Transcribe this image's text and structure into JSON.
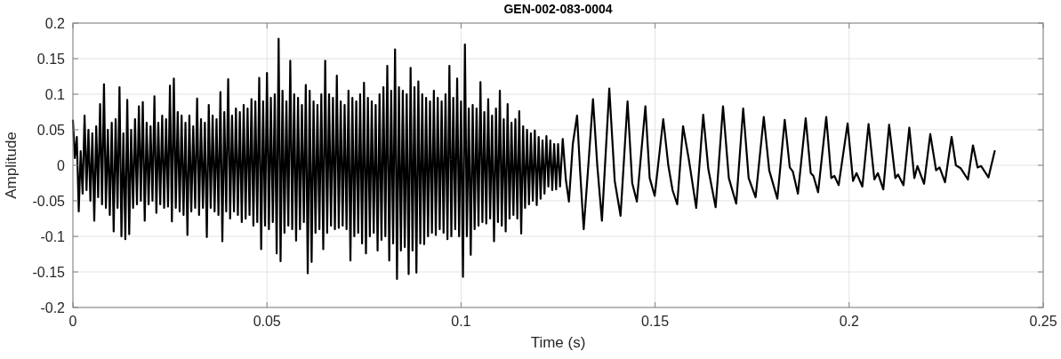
{
  "chart_data": {
    "type": "line",
    "title": "GEN-002-083-0004",
    "xlabel": "Time (s)",
    "ylabel": "Amplitude",
    "xlim": [
      0,
      0.25
    ],
    "xticks": [
      0,
      0.05,
      0.1,
      0.15,
      0.2,
      0.25
    ],
    "ylim": [
      -0.2,
      0.2
    ],
    "yticks": [
      -0.2,
      -0.15,
      -0.1,
      -0.05,
      0,
      0.05,
      0.1,
      0.15,
      0.2
    ],
    "grid": true,
    "line_style": "solid",
    "series": [
      {
        "color": "#000000",
        "x": [
          0,
          0.0005,
          0.001,
          0.0015,
          0.002,
          0.0025,
          0.003,
          0.0035,
          0.004,
          0.0045,
          0.005,
          0.0055,
          0.006,
          0.0065,
          0.007,
          0.0075,
          0.008,
          0.0085,
          0.009,
          0.0095,
          0.01,
          0.0105,
          0.011,
          0.0115,
          0.012,
          0.0125,
          0.013,
          0.0135,
          0.014,
          0.0145,
          0.015,
          0.0155,
          0.016,
          0.0165,
          0.017,
          0.0175,
          0.018,
          0.0185,
          0.019,
          0.0195,
          0.02,
          0.0205,
          0.021,
          0.0215,
          0.022,
          0.0225,
          0.023,
          0.0235,
          0.024,
          0.0245,
          0.025,
          0.0255,
          0.026,
          0.0265,
          0.027,
          0.0275,
          0.028,
          0.0285,
          0.029,
          0.0295,
          0.03,
          0.0305,
          0.031,
          0.0315,
          0.032,
          0.0325,
          0.033,
          0.0335,
          0.034,
          0.0345,
          0.035,
          0.0355,
          0.036,
          0.0365,
          0.037,
          0.0375,
          0.038,
          0.0385,
          0.039,
          0.0395,
          0.04,
          0.0405,
          0.041,
          0.0415,
          0.042,
          0.0425,
          0.043,
          0.0435,
          0.044,
          0.0445,
          0.045,
          0.0455,
          0.046,
          0.0465,
          0.047,
          0.0475,
          0.048,
          0.0485,
          0.049,
          0.0495,
          0.05,
          0.0505,
          0.051,
          0.0515,
          0.052,
          0.0525,
          0.053,
          0.0535,
          0.054,
          0.0545,
          0.055,
          0.0555,
          0.056,
          0.0565,
          0.057,
          0.0575,
          0.058,
          0.0585,
          0.059,
          0.0595,
          0.06,
          0.0605,
          0.061,
          0.0615,
          0.062,
          0.0625,
          0.063,
          0.0635,
          0.064,
          0.0645,
          0.065,
          0.0655,
          0.066,
          0.0665,
          0.067,
          0.0675,
          0.068,
          0.0685,
          0.069,
          0.0695,
          0.07,
          0.0705,
          0.071,
          0.0715,
          0.072,
          0.0725,
          0.073,
          0.0735,
          0.074,
          0.0745,
          0.075,
          0.0755,
          0.076,
          0.0765,
          0.077,
          0.0775,
          0.078,
          0.0785,
          0.079,
          0.0795,
          0.08,
          0.0805,
          0.081,
          0.0815,
          0.082,
          0.0825,
          0.083,
          0.0835,
          0.084,
          0.0845,
          0.085,
          0.0855,
          0.086,
          0.0865,
          0.087,
          0.0875,
          0.088,
          0.0885,
          0.089,
          0.0895,
          0.09,
          0.0905,
          0.091,
          0.0915,
          0.092,
          0.0925,
          0.093,
          0.0935,
          0.094,
          0.0945,
          0.095,
          0.0955,
          0.096,
          0.0965,
          0.097,
          0.0975,
          0.098,
          0.0985,
          0.099,
          0.0995,
          0.1,
          0.1005,
          0.101,
          0.1015,
          0.102,
          0.1025,
          0.103,
          0.1035,
          0.104,
          0.1045,
          0.105,
          0.1055,
          0.106,
          0.1065,
          0.107,
          0.1075,
          0.108,
          0.1085,
          0.109,
          0.1095,
          0.11,
          0.1105,
          0.111,
          0.1115,
          0.112,
          0.1125,
          0.113,
          0.1135,
          0.114,
          0.1145,
          0.115,
          0.1155,
          0.116,
          0.1165,
          0.117,
          0.1175,
          0.118,
          0.1185,
          0.119,
          0.1195,
          0.12,
          0.1205,
          0.121,
          0.1215,
          0.122,
          0.1225,
          0.123,
          0.1235,
          0.124,
          0.1245,
          0.125,
          0.1255,
          0.1262,
          0.127,
          0.1278,
          0.1288,
          0.1299,
          0.1307,
          0.1316,
          0.1328,
          0.134,
          0.1351,
          0.1363,
          0.1382,
          0.1396,
          0.1411,
          0.1429,
          0.1441,
          0.1453,
          0.1475,
          0.1486,
          0.1499,
          0.1521,
          0.1534,
          0.1545,
          0.1557,
          0.1572,
          0.1587,
          0.1606,
          0.1624,
          0.1637,
          0.1656,
          0.1675,
          0.169,
          0.1709,
          0.1727,
          0.1741,
          0.1759,
          0.178,
          0.1794,
          0.1815,
          0.1834,
          0.1847,
          0.1855,
          0.1868,
          0.1888,
          0.1901,
          0.1908,
          0.192,
          0.1941,
          0.1954,
          0.1962,
          0.1973,
          0.1996,
          0.201,
          0.2019,
          0.2034,
          0.205,
          0.2065,
          0.2074,
          0.2088,
          0.2103,
          0.2119,
          0.2126,
          0.214,
          0.2155,
          0.2168,
          0.2176,
          0.2193,
          0.2209,
          0.2224,
          0.2233,
          0.2247,
          0.2264,
          0.2275,
          0.2287,
          0.2306,
          0.2319,
          0.2331,
          0.234,
          0.2359,
          0.2375
        ],
        "values": [
          0.063,
          0.01,
          0.04,
          -0.065,
          0.02,
          -0.04,
          0.07,
          -0.035,
          0.05,
          -0.05,
          0.045,
          -0.078,
          0.055,
          -0.045,
          0.086,
          -0.055,
          0.114,
          -0.06,
          0.05,
          -0.07,
          0.06,
          -0.093,
          0.065,
          -0.06,
          0.11,
          -0.1,
          0.045,
          -0.104,
          0.092,
          -0.097,
          0.05,
          -0.06,
          0.065,
          -0.055,
          0.083,
          -0.05,
          0.089,
          -0.078,
          0.06,
          -0.055,
          0.055,
          -0.05,
          0.097,
          -0.067,
          0.06,
          -0.055,
          0.07,
          -0.06,
          0.065,
          -0.058,
          0.112,
          -0.079,
          0.122,
          -0.06,
          0.075,
          -0.065,
          0.07,
          -0.07,
          0.06,
          -0.098,
          0.07,
          -0.065,
          0.055,
          -0.06,
          0.094,
          -0.07,
          0.065,
          -0.06,
          0.06,
          -0.101,
          0.085,
          -0.06,
          0.07,
          -0.065,
          0.065,
          -0.07,
          0.103,
          -0.107,
          0.075,
          -0.065,
          0.121,
          -0.075,
          0.07,
          -0.065,
          0.08,
          -0.07,
          0.075,
          -0.08,
          0.085,
          -0.075,
          0.08,
          -0.07,
          0.093,
          -0.085,
          0.09,
          -0.08,
          0.123,
          -0.118,
          0.09,
          -0.085,
          0.13,
          -0.09,
          0.095,
          -0.08,
          0.1,
          -0.124,
          0.178,
          -0.135,
          0.105,
          -0.095,
          0.09,
          -0.085,
          0.147,
          -0.09,
          0.1,
          -0.106,
          0.095,
          -0.09,
          0.085,
          -0.08,
          0.113,
          -0.152,
          0.105,
          -0.136,
          0.09,
          -0.095,
          0.085,
          -0.09,
          0.1,
          -0.118,
          0.147,
          -0.095,
          0.1,
          -0.085,
          0.095,
          -0.09,
          0.126,
          -0.088,
          0.09,
          -0.085,
          0.085,
          -0.09,
          0.105,
          -0.134,
          0.095,
          -0.1,
          0.09,
          -0.095,
          0.1,
          -0.11,
          0.116,
          -0.124,
          0.095,
          -0.1,
          0.09,
          -0.095,
          0.085,
          -0.12,
          0.1,
          -0.105,
          0.11,
          -0.1,
          0.14,
          -0.134,
          0.105,
          -0.11,
          0.163,
          -0.16,
          0.11,
          -0.12,
          0.105,
          -0.115,
          0.1,
          -0.153,
          0.137,
          -0.12,
          0.11,
          -0.151,
          0.118,
          -0.11,
          0.1,
          -0.111,
          0.095,
          -0.1,
          0.09,
          -0.095,
          0.105,
          -0.098,
          0.095,
          -0.09,
          0.09,
          -0.095,
          0.1,
          -0.104,
          0.14,
          -0.1,
          0.095,
          -0.09,
          0.122,
          -0.1,
          0.09,
          -0.157,
          0.17,
          -0.1,
          0.08,
          -0.126,
          0.085,
          -0.09,
          0.08,
          -0.085,
          0.117,
          -0.08,
          0.075,
          -0.082,
          0.093,
          -0.075,
          0.07,
          -0.107,
          0.08,
          -0.08,
          0.105,
          -0.085,
          0.065,
          -0.093,
          0.086,
          -0.075,
          0.06,
          -0.07,
          0.065,
          -0.075,
          0.076,
          -0.096,
          0.055,
          -0.06,
          0.05,
          -0.055,
          0.045,
          -0.05,
          0.049,
          -0.056,
          0.04,
          -0.047,
          0.035,
          -0.04,
          0.041,
          -0.03,
          0.035,
          -0.035,
          0.03,
          -0.034,
          0.03,
          -0.03,
          0.037,
          -0.02,
          -0.051,
          0.03,
          0.07,
          -0.01,
          -0.09,
          0.0,
          0.093,
          0.0,
          -0.078,
          0.108,
          -0.022,
          -0.071,
          0.09,
          -0.025,
          -0.051,
          0.083,
          -0.018,
          -0.043,
          0.065,
          0.0,
          -0.035,
          -0.055,
          0.055,
          0.008,
          -0.06,
          0.071,
          -0.005,
          -0.059,
          0.083,
          -0.018,
          -0.054,
          0.08,
          -0.018,
          -0.045,
          0.068,
          -0.007,
          -0.047,
          0.064,
          -0.003,
          -0.009,
          -0.04,
          0.066,
          -0.011,
          -0.015,
          -0.038,
          0.068,
          -0.018,
          -0.015,
          -0.028,
          0.059,
          -0.022,
          -0.011,
          -0.03,
          0.058,
          -0.02,
          -0.011,
          -0.034,
          0.057,
          -0.018,
          -0.013,
          -0.028,
          0.053,
          -0.018,
          -0.001,
          -0.026,
          0.044,
          -0.007,
          -0.003,
          -0.024,
          0.04,
          0,
          -0.004,
          -0.02,
          0.028,
          -0.003,
          -0.001,
          -0.017,
          0.02
        ]
      }
    ]
  }
}
